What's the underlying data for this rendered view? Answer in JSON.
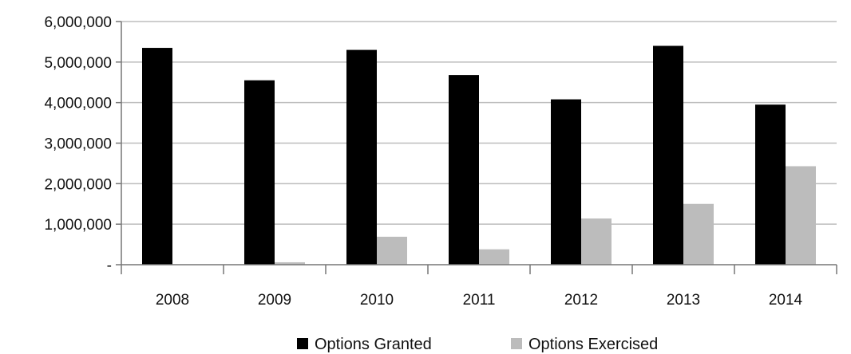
{
  "chart_data": {
    "type": "bar",
    "title": "",
    "xlabel": "",
    "ylabel": "",
    "categories": [
      "2008",
      "2009",
      "2010",
      "2011",
      "2012",
      "2013",
      "2014"
    ],
    "series": [
      {
        "name": "Options Granted",
        "color": "#000000",
        "values": [
          5350000,
          4550000,
          5300000,
          4680000,
          4080000,
          5400000,
          3950000
        ]
      },
      {
        "name": "Options Exercised",
        "color": "#bcbcbc",
        "values": [
          0,
          60000,
          690000,
          380000,
          1140000,
          1500000,
          2430000
        ]
      }
    ],
    "ylim": [
      0,
      6000000
    ],
    "yticks": [
      0,
      1000000,
      2000000,
      3000000,
      4000000,
      5000000,
      6000000
    ],
    "ytick_labels": [
      "-",
      "1,000,000",
      "2,000,000",
      "3,000,000",
      "4,000,000",
      "5,000,000",
      "6,000,000"
    ],
    "grid": true,
    "legend_position": "bottom"
  }
}
